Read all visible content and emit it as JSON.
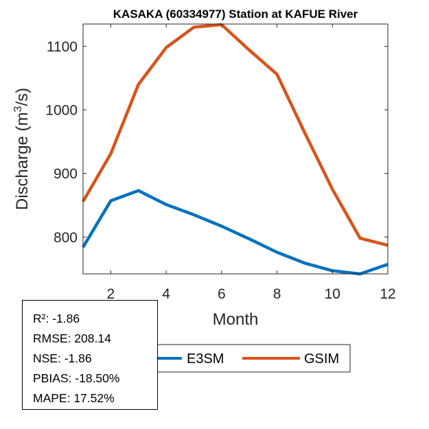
{
  "chart_data": {
    "type": "line",
    "title": "KASAKA (60334977)  Station at  KAFUE  River",
    "xlabel": "Month",
    "ylabel_prefix": "Discharge (m",
    "ylabel_sup": "3",
    "ylabel_suffix": "/s)",
    "x": [
      1,
      2,
      3,
      4,
      5,
      6,
      7,
      8,
      9,
      10,
      11,
      12
    ],
    "xlim": [
      1,
      12
    ],
    "ylim": [
      742,
      1135
    ],
    "xticks": [
      2,
      4,
      6,
      8,
      10,
      12
    ],
    "xtick_labels": [
      "2",
      "4",
      "6",
      "8",
      "10",
      "12"
    ],
    "yticks": [
      800,
      900,
      1000,
      1100
    ],
    "ytick_labels": [
      "800",
      "900",
      "1000",
      "1100"
    ],
    "grid": false,
    "legend_position": "bottom-center-outside",
    "series": [
      {
        "name": "E3SM",
        "color": "#0072BD",
        "values": [
          784,
          857,
          873,
          851,
          835,
          817,
          797,
          776,
          759,
          747,
          742,
          757
        ]
      },
      {
        "name": "GSIM",
        "color": "#D95319",
        "values": [
          856,
          931,
          1040,
          1098,
          1130,
          1134,
          1094,
          1056,
          964,
          875,
          798,
          787
        ]
      }
    ]
  },
  "stats": {
    "lines": [
      "R²: -1.86",
      "RMSE: 208.14",
      "NSE: -1.86",
      "PBIAS: -18.50%",
      "MAPE: 17.52%"
    ]
  }
}
